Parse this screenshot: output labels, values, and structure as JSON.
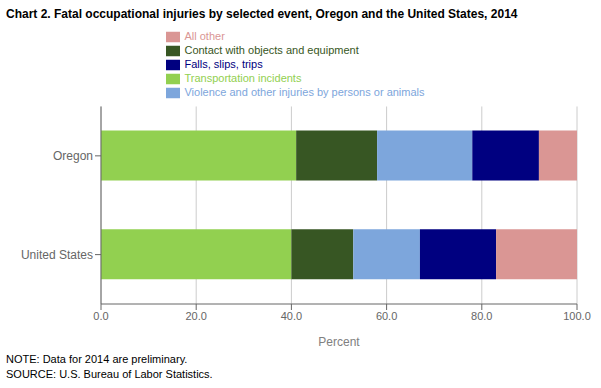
{
  "chart_data": {
    "type": "bar",
    "orientation": "horizontal",
    "stacked": true,
    "title": "Chart 2.  Fatal occupational injuries by selected event, Oregon and the United States, 2014",
    "categories": [
      "United States",
      "Oregon"
    ],
    "series": [
      {
        "name": "Transportation incidents",
        "color": "#92D050",
        "values": [
          40.0,
          41.0
        ]
      },
      {
        "name": "Contact with objects and equipment",
        "color": "#375623",
        "values": [
          13.0,
          17.0
        ]
      },
      {
        "name": "Violence and other injuries by persons or animals",
        "color": "#7DA6DC",
        "values": [
          14.0,
          20.0
        ]
      },
      {
        "name": "Falls, slips, trips",
        "color": "#000080",
        "values": [
          16.0,
          14.0
        ]
      },
      {
        "name": "All other",
        "color": "#DA9694",
        "values": [
          17.0,
          8.0
        ]
      }
    ],
    "xlabel": "Percent",
    "xlim": [
      0,
      100
    ],
    "xticks": [
      {
        "value": 0,
        "label": "0.0"
      },
      {
        "value": 20,
        "label": "20.0"
      },
      {
        "value": 40,
        "label": "40.0"
      },
      {
        "value": 60,
        "label": "60.0"
      },
      {
        "value": 80,
        "label": "80.0"
      },
      {
        "value": 100,
        "label": "100.0"
      }
    ],
    "grid": true,
    "legend": "top",
    "annotations": [
      "NOTE: Data for 2014 are preliminary.",
      "SOURCE: U.S. Bureau of Labor Statistics."
    ]
  }
}
